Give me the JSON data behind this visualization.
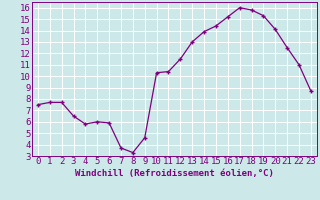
{
  "x": [
    0,
    1,
    2,
    3,
    4,
    5,
    6,
    7,
    8,
    9,
    10,
    11,
    12,
    13,
    14,
    15,
    16,
    17,
    18,
    19,
    20,
    21,
    22,
    23
  ],
  "y": [
    7.5,
    7.7,
    7.7,
    6.5,
    5.8,
    6.0,
    5.9,
    3.7,
    3.3,
    4.6,
    10.3,
    10.4,
    11.5,
    13.0,
    13.9,
    14.4,
    15.2,
    16.0,
    15.8,
    15.3,
    14.1,
    12.5,
    11.0,
    8.7
  ],
  "line_color": "#800080",
  "marker": "+",
  "bg_color": "#cce8e8",
  "grid_color": "#ffffff",
  "xlabel": "Windchill (Refroidissement éolien,°C)",
  "tick_color": "#800080",
  "ylim": [
    3,
    16.5
  ],
  "xlim": [
    -0.5,
    23.5
  ],
  "yticks": [
    3,
    4,
    5,
    6,
    7,
    8,
    9,
    10,
    11,
    12,
    13,
    14,
    15,
    16
  ],
  "xticks": [
    0,
    1,
    2,
    3,
    4,
    5,
    6,
    7,
    8,
    9,
    10,
    11,
    12,
    13,
    14,
    15,
    16,
    17,
    18,
    19,
    20,
    21,
    22,
    23
  ],
  "font_size": 6.5
}
